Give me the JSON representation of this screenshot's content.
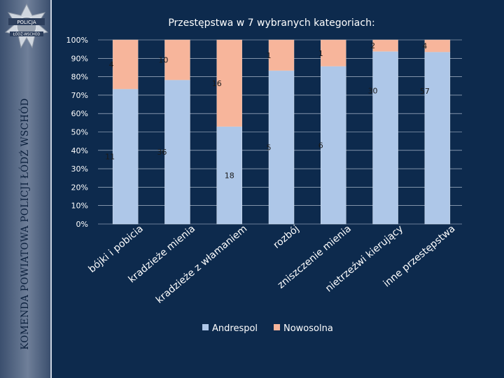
{
  "sidebar": {
    "vertical_text": "KOMENDA POWIATOWA POLICJI ŁÓDŹ WSCHÓD",
    "badge_top": "POLICJA",
    "badge_bottom": "ŁÓDŹ-WSCHÓD"
  },
  "chart_data": {
    "type": "bar",
    "stacked": "percent",
    "title": "Przestępstwa w 7 wybranych kategoriach:",
    "categories": [
      "bójki i pobicia",
      "kradzieże mienia",
      "kradzieże z włamaniem",
      "rozbój",
      "zniszczenie mienia",
      "nietrzeźwi kierujący",
      "inne przestępstwa"
    ],
    "series": [
      {
        "name": "Andrespol",
        "values": [
          11,
          36,
          18,
          5,
          6,
          30,
          57
        ],
        "color": "#aec7e8"
      },
      {
        "name": "Nowosolna",
        "values": [
          4,
          10,
          16,
          1,
          1,
          2,
          4
        ],
        "color": "#f7b59b"
      }
    ],
    "y_ticks": [
      "0%",
      "10%",
      "20%",
      "30%",
      "40%",
      "50%",
      "60%",
      "70%",
      "80%",
      "90%",
      "100%"
    ],
    "ylim": [
      0,
      100
    ],
    "legend": "bottom"
  }
}
